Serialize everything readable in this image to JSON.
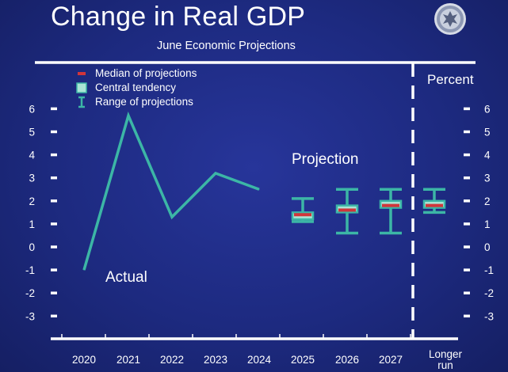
{
  "header": {
    "title": "Change in Real GDP",
    "subtitle": "June Economic Projections",
    "seal_icon": "federal-reserve-seal-icon"
  },
  "annotations": {
    "percent": "Percent",
    "projection": "Projection",
    "actual": "Actual"
  },
  "colors": {
    "background": "#1d2a80",
    "line": "#3cb6a6",
    "central_tendency": "#a9e4d5",
    "median": "#d1353a",
    "axis": "#ffffff"
  },
  "chart_data": {
    "type": "line",
    "title": "Change in Real GDP",
    "subtitle": "June Economic Projections",
    "ylabel": "Percent",
    "ylim": [
      -3,
      6
    ],
    "yticks": [
      6,
      5,
      4,
      3,
      2,
      1,
      0,
      -1,
      -2,
      -3
    ],
    "categories": [
      "2020",
      "2021",
      "2022",
      "2023",
      "2024",
      "2025",
      "2026",
      "2027",
      "Longer run"
    ],
    "legend": {
      "position": "top-left",
      "entries": [
        "Median of projections",
        "Central tendency",
        "Range of projections"
      ]
    },
    "actual": {
      "name": "Actual",
      "x": [
        "2020",
        "2021",
        "2022",
        "2023",
        "2024"
      ],
      "values": [
        -1.0,
        5.7,
        1.3,
        3.2,
        2.5
      ]
    },
    "projections": {
      "name": "Projection",
      "x": [
        "2025",
        "2026",
        "2027",
        "Longer run"
      ],
      "median": [
        1.4,
        1.6,
        1.8,
        1.8
      ],
      "central_tendency_low": [
        1.2,
        1.5,
        1.7,
        1.7
      ],
      "central_tendency_high": [
        1.5,
        1.8,
        2.0,
        2.0
      ],
      "range_low": [
        1.1,
        0.6,
        0.6,
        1.5
      ],
      "range_high": [
        2.1,
        2.5,
        2.5,
        2.5
      ]
    }
  }
}
